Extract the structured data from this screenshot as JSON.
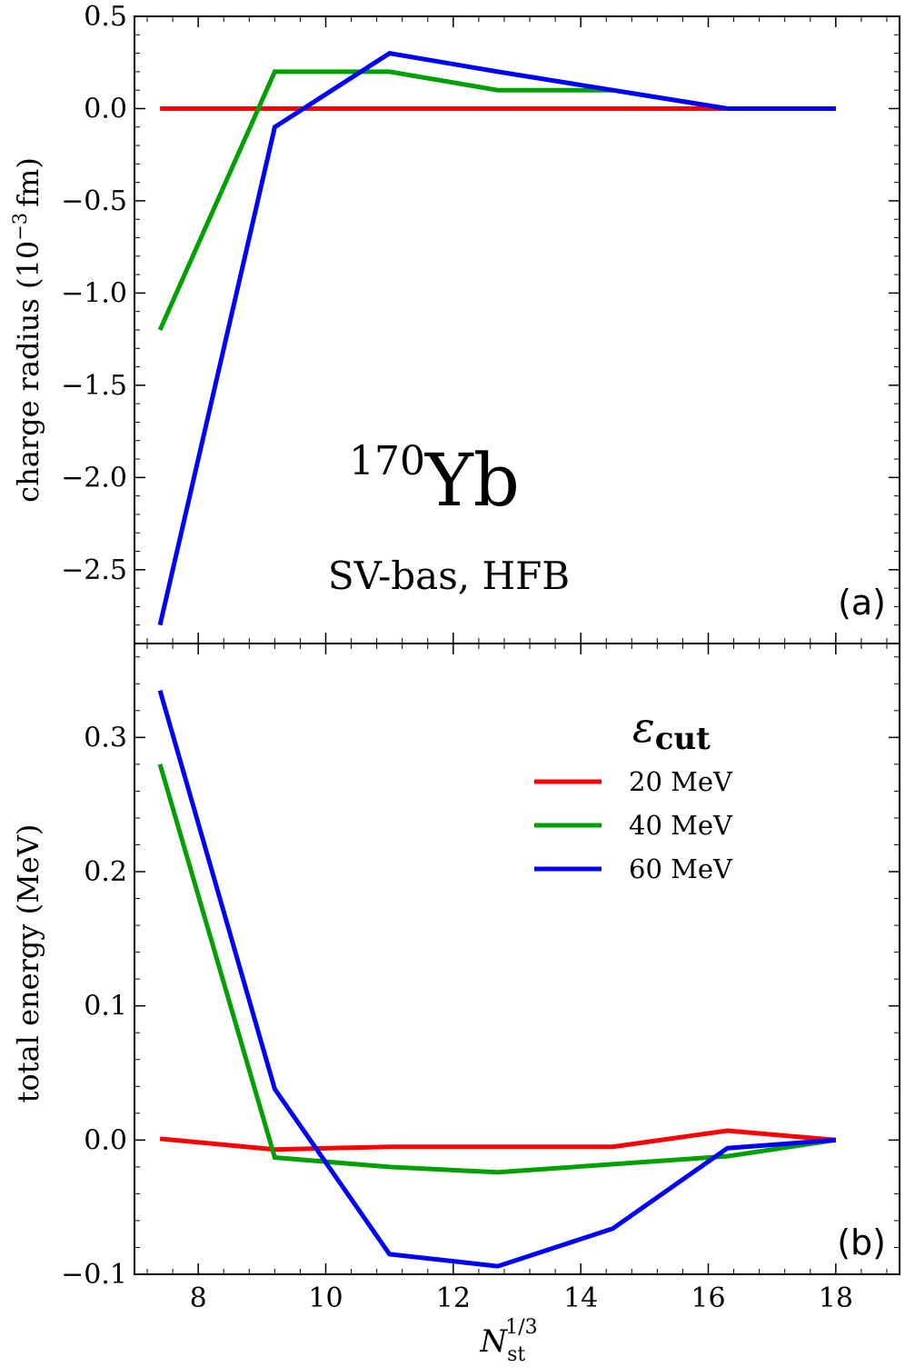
{
  "chart_data": [
    {
      "type": "line",
      "panel_label": "(a)",
      "ylabel_main": "charge radius (10",
      "ylabel_exp": "−3",
      "ylabel_tail": "fm)",
      "ylim": [
        -2.9,
        0.5
      ],
      "yticks": [
        0.5,
        0.0,
        -0.5,
        -1.0,
        -1.5,
        -2.0,
        -2.5
      ],
      "ytick_labels": [
        "0.5",
        "0.0",
        "−0.5",
        "−1.0",
        "−1.5",
        "−2.0",
        "−2.5"
      ],
      "xlim": [
        7.0,
        19.0
      ],
      "nucleus_mass": "170",
      "nucleus_symbol": "Yb",
      "method_label": "SV-bas, HFB",
      "grid": false,
      "series": [
        {
          "name": "20 MeV",
          "color": "#ff0000",
          "x": [
            7.4,
            9.2,
            11.0,
            12.7,
            14.5,
            16.3,
            18.0
          ],
          "values": [
            0.0,
            0.0,
            0.0,
            0.0,
            0.0,
            0.0,
            0.0
          ]
        },
        {
          "name": "40 MeV",
          "color": "#00a000",
          "x": [
            7.4,
            9.2,
            11.0,
            12.7,
            14.5,
            16.3,
            18.0
          ],
          "values": [
            -1.2,
            0.2,
            0.2,
            0.1,
            0.1,
            0.0,
            0.0
          ]
        },
        {
          "name": "60 MeV",
          "color": "#0000ff",
          "x": [
            7.4,
            9.2,
            11.0,
            12.7,
            14.5,
            16.3,
            18.0
          ],
          "values": [
            -2.8,
            -0.1,
            0.3,
            0.2,
            0.1,
            0.0,
            0.0
          ]
        }
      ]
    },
    {
      "type": "line",
      "panel_label": "(b)",
      "ylabel": "total energy (MeV)",
      "ylim": [
        -0.1,
        0.37
      ],
      "yticks": [
        0.3,
        0.2,
        0.1,
        0.0,
        -0.1
      ],
      "ytick_labels": [
        "0.3",
        "0.2",
        "0.1",
        "0.0",
        "−0.1"
      ],
      "xlim": [
        7.0,
        19.0
      ],
      "xticks": [
        8,
        10,
        12,
        14,
        16,
        18
      ],
      "xtick_labels": [
        "8",
        "10",
        "12",
        "14",
        "16",
        "18"
      ],
      "xlabel_base": "N",
      "xlabel_sub": "st",
      "xlabel_sup": "1/3",
      "legend_title_symbol": "ε",
      "legend_title_sub": "cut",
      "legend_position": "top-right",
      "grid": false,
      "series": [
        {
          "name": "20 MeV",
          "color": "#ff0000",
          "x": [
            7.4,
            9.2,
            11.0,
            12.7,
            14.5,
            16.3,
            18.0
          ],
          "values": [
            0.001,
            -0.007,
            -0.005,
            -0.005,
            -0.005,
            0.007,
            0.0
          ]
        },
        {
          "name": "40 MeV",
          "color": "#00a000",
          "x": [
            7.4,
            9.2,
            11.0,
            12.7,
            14.5,
            16.3,
            18.0
          ],
          "values": [
            0.28,
            -0.013,
            -0.02,
            -0.024,
            -0.018,
            -0.012,
            0.0
          ]
        },
        {
          "name": "60 MeV",
          "color": "#0000ff",
          "x": [
            7.4,
            9.2,
            11.0,
            12.7,
            14.5,
            16.3,
            18.0
          ],
          "values": [
            0.335,
            0.038,
            -0.085,
            -0.094,
            -0.066,
            -0.006,
            0.0
          ]
        }
      ]
    }
  ]
}
